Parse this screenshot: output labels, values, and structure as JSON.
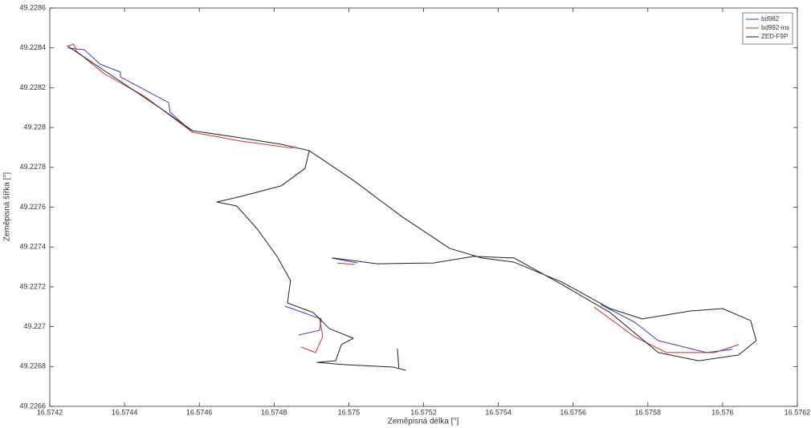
{
  "chart_data": {
    "type": "line",
    "x_label": "Zeměpisná délka [°]",
    "y_label": "Zeměpisná šířka [°]",
    "xlim": [
      16.5742,
      16.5762
    ],
    "ylim": [
      49.2266,
      49.2286
    ],
    "xticks": [
      16.5742,
      16.5744,
      16.5746,
      16.5748,
      16.575,
      16.5752,
      16.5754,
      16.5756,
      16.5758,
      16.576,
      16.5762
    ],
    "yticks": [
      49.2266,
      49.2268,
      49.227,
      49.2272,
      49.2274,
      49.2276,
      49.2278,
      49.228,
      49.2282,
      49.2284,
      49.2286
    ],
    "grid": false,
    "legend": "northeast",
    "series": [
      {
        "name": "bd982",
        "color": "#3a3ac8",
        "x": [
          16.574249,
          16.574292,
          16.574335,
          16.574389,
          16.574389,
          16.574518,
          16.574522,
          16.574582,
          null,
          16.574829,
          16.574926,
          16.574922,
          16.574866,
          null,
          16.574954,
          16.575023,
          null,
          16.575674,
          16.575764,
          16.575828,
          16.575957,
          16.576026
        ],
        "values": [
          49.228399,
          49.228391,
          49.228318,
          49.228278,
          49.228254,
          49.228125,
          49.228077,
          49.227976,
          null,
          49.227103,
          49.227039,
          49.226982,
          49.226958,
          null,
          49.227345,
          49.22732,
          null,
          49.227111,
          49.227023,
          49.22693,
          49.22687,
          49.226886
        ]
      },
      {
        "name": "bd992-ins",
        "color": "#d42a2a",
        "x": [
          16.574245,
          16.574264,
          16.574271,
          16.574346,
          16.574453,
          16.574582,
          16.574711,
          16.574851,
          null,
          16.574922,
          16.57493,
          16.574911,
          16.574872,
          null,
          16.574969,
          16.575016,
          null,
          16.575656,
          16.575764,
          16.57585,
          16.575979,
          16.576043
        ],
        "values": [
          49.228407,
          49.228419,
          49.228383,
          49.22827,
          49.228157,
          49.227976,
          49.227932,
          49.227896,
          null,
          49.227047,
          49.22695,
          49.22687,
          49.226898,
          null,
          49.22732,
          49.227312,
          null,
          49.227099,
          49.22695,
          49.22687,
          49.22687,
          49.22691
        ]
      },
      {
        "name": "ZED-F9P",
        "color": "#222222",
        "x": [
          16.574249,
          16.574368,
          16.574496,
          16.574582,
          16.574711,
          16.574819,
          16.574894,
          16.574883,
          16.574819,
          16.574711,
          16.574647,
          16.5747,
          16.574754,
          16.574808,
          16.574844,
          16.574836,
          16.574905,
          16.574948,
          16.575012,
          16.57498,
          16.574965,
          16.574915,
          16.57499,
          16.575119,
          16.575152,
          null,
          16.574894,
          16.575012,
          16.575141,
          16.57527,
          16.575356,
          16.575442,
          16.57557,
          16.575699,
          16.575785,
          16.575914,
          16.576,
          16.576075,
          16.57609,
          16.576043,
          16.575936,
          16.575828,
          16.575699,
          16.57557,
          16.575442,
          16.575334,
          16.575227,
          16.575076,
          16.574958,
          null,
          16.57513,
          16.575134
        ],
        "values": [
          49.228407,
          49.228258,
          49.228097,
          49.227984,
          49.227948,
          49.227916,
          49.227884,
          49.227795,
          49.227707,
          49.227654,
          49.227626,
          49.227606,
          49.227493,
          49.227353,
          49.227232,
          49.227119,
          49.227071,
          49.22699,
          49.226942,
          49.22691,
          49.226829,
          49.226821,
          49.226809,
          49.226797,
          49.226781,
          null,
          49.227884,
          49.227735,
          49.227554,
          49.227393,
          49.227345,
          49.227324,
          49.227224,
          49.227091,
          49.227039,
          49.227079,
          49.227091,
          49.227031,
          49.22693,
          49.226858,
          49.226829,
          49.22687,
          49.227071,
          49.227212,
          49.227345,
          49.227353,
          49.22732,
          49.227316,
          49.227345,
          null,
          49.22689,
          49.226789
        ]
      }
    ]
  }
}
